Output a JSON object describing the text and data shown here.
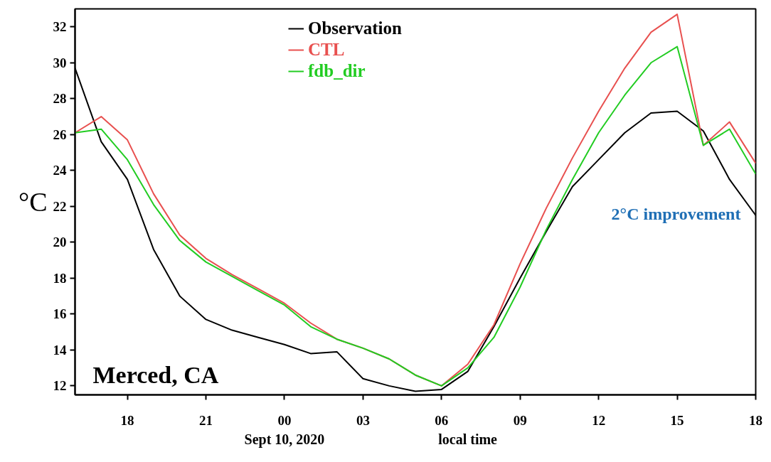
{
  "chart_data": {
    "type": "line",
    "title": "Merced, CA",
    "xlabel": "local time",
    "ylabel": "°C",
    "annotations": [
      "Sept 10, 2020",
      "2°C improvement"
    ],
    "x": [
      16,
      17,
      18,
      19,
      20,
      21,
      22,
      23,
      24,
      25,
      26,
      27,
      28,
      29,
      30,
      31,
      32,
      33,
      34,
      35,
      36,
      37,
      38,
      39,
      40,
      41,
      42
    ],
    "series": [
      {
        "name": "Observation",
        "color": "#000000",
        "values": [
          29.7,
          25.6,
          23.5,
          19.6,
          17.0,
          15.7,
          15.1,
          14.7,
          14.3,
          13.8,
          13.9,
          12.4,
          12.0,
          11.7,
          11.8,
          12.8,
          15.3,
          18.0,
          20.6,
          23.1,
          24.6,
          26.1,
          27.2,
          27.3,
          26.2,
          23.5,
          21.5
        ]
      },
      {
        "name": "CTL",
        "color": "#e8504f",
        "values": [
          26.1,
          27.0,
          25.7,
          22.7,
          20.4,
          19.1,
          18.2,
          17.4,
          16.6,
          15.5,
          14.6,
          14.1,
          13.5,
          12.6,
          12.0,
          13.2,
          15.4,
          18.8,
          21.9,
          24.7,
          27.3,
          29.7,
          31.7,
          32.7,
          25.4,
          26.7,
          24.4
        ]
      },
      {
        "name": "fdb_dir",
        "color": "#22cc22",
        "values": [
          26.1,
          26.3,
          24.6,
          22.1,
          20.1,
          18.9,
          18.1,
          17.3,
          16.5,
          15.3,
          14.6,
          14.1,
          13.5,
          12.6,
          12.0,
          13.0,
          14.7,
          17.5,
          20.7,
          23.5,
          26.1,
          28.2,
          30.0,
          30.9,
          25.4,
          26.3,
          23.8
        ]
      }
    ],
    "xlim": [
      16,
      42
    ],
    "ylim": [
      11.5,
      33
    ],
    "xticks": [
      {
        "value": 18,
        "label": "18"
      },
      {
        "value": 21,
        "label": "21"
      },
      {
        "value": 24,
        "label": "00"
      },
      {
        "value": 27,
        "label": "03"
      },
      {
        "value": 30,
        "label": "06"
      },
      {
        "value": 33,
        "label": "09"
      },
      {
        "value": 36,
        "label": "12"
      },
      {
        "value": 39,
        "label": "15"
      },
      {
        "value": 42,
        "label": "18"
      }
    ],
    "yticks": [
      12,
      14,
      16,
      18,
      20,
      22,
      24,
      26,
      28,
      30,
      32
    ],
    "legend": "top",
    "grid": false,
    "marker": "none",
    "line_style": "solid"
  }
}
